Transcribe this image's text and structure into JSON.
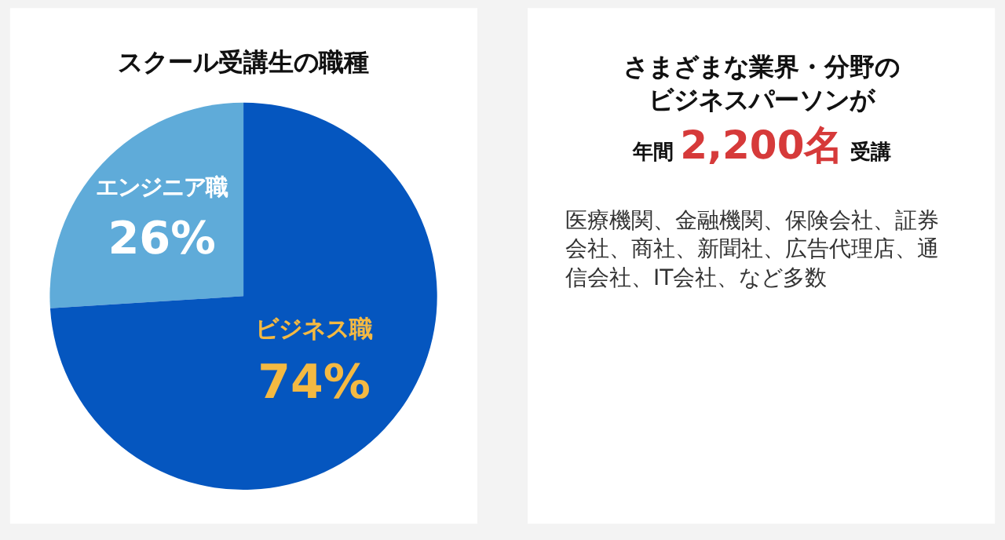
{
  "chart_data": [
    {
      "type": "pie",
      "title": "スクール受講生の職種",
      "categories": [
        "エンジニア職",
        "ビジネス職"
      ],
      "values": [
        26,
        74
      ],
      "value_labels": [
        "26%",
        "74%"
      ],
      "colors": [
        "#5fabd9",
        "#0556bf"
      ]
    },
    {
      "type": "other",
      "title": "さまざまな業界・分野のビジネスパーソンが",
      "annotations": [
        "年間",
        "2,200名",
        "受講",
        "医療機関、金融機関、保険会社、証券会社、商社、新聞社、広告代理店、通信会社、IT会社、など多数"
      ]
    }
  ]
}
